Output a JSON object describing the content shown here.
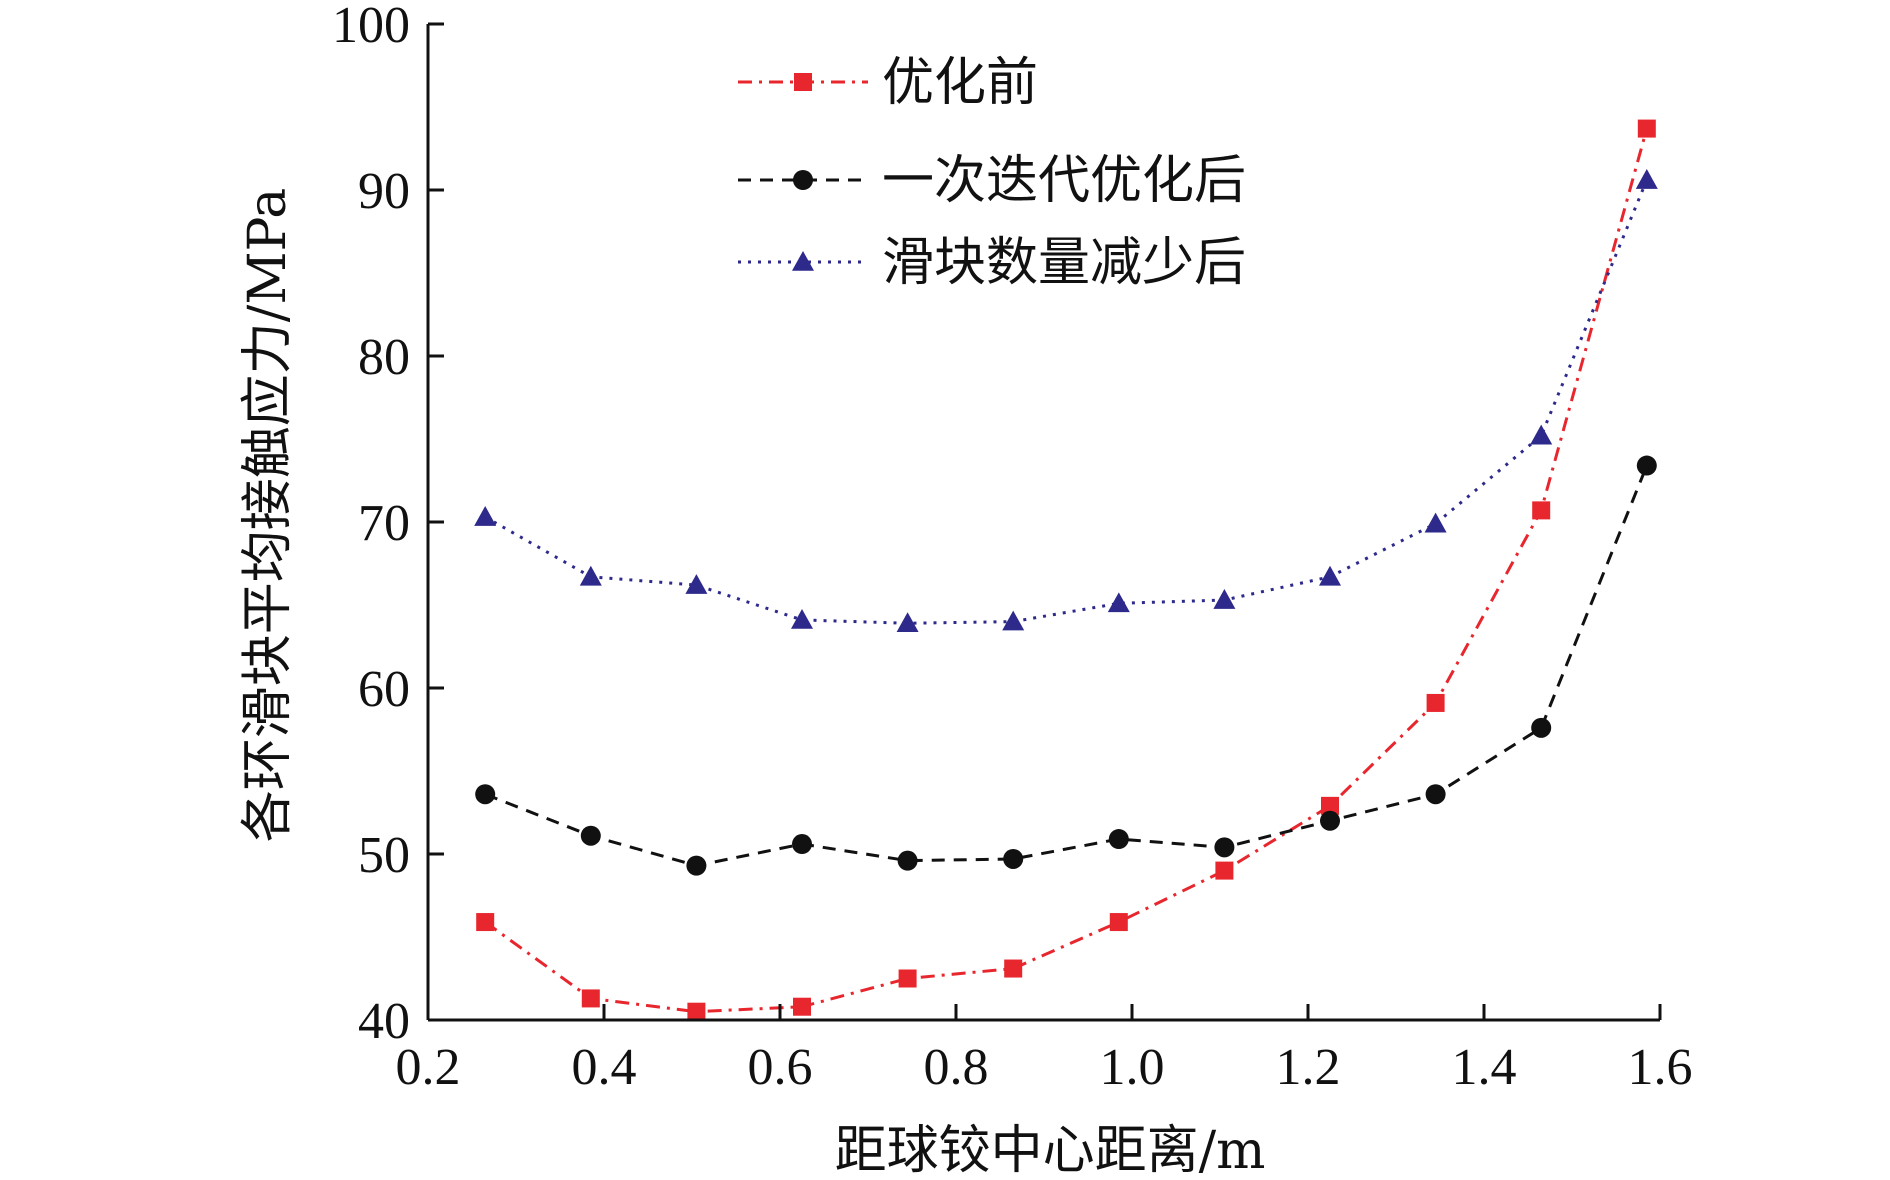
{
  "chart_data": {
    "type": "line",
    "title": "",
    "xlabel": "距球铰中心距离/m",
    "ylabel": "各环滑块平均接触应力/MPa",
    "xlim": [
      0.2,
      1.6
    ],
    "ylim": [
      40,
      100
    ],
    "x_ticks": [
      "0.2",
      "0.4",
      "0.6",
      "0.8",
      "1.0",
      "1.2",
      "1.4",
      "1.6"
    ],
    "y_ticks": [
      "40",
      "50",
      "60",
      "70",
      "80",
      "90",
      "100"
    ],
    "legend_position": "top-center",
    "x": [
      0.265,
      0.385,
      0.505,
      0.625,
      0.745,
      0.865,
      0.985,
      1.105,
      1.225,
      1.345,
      1.465,
      1.585
    ],
    "series": [
      {
        "name": "优化前",
        "color": "#e8262d",
        "marker": "square",
        "line_style": "dashdot",
        "values": [
          45.9,
          41.3,
          40.5,
          40.8,
          42.5,
          43.1,
          45.9,
          49.0,
          52.9,
          59.1,
          70.7,
          93.7
        ]
      },
      {
        "name": "一次迭代优化后",
        "color": "#111111",
        "marker": "circle",
        "line_style": "dash",
        "values": [
          53.6,
          51.1,
          49.3,
          50.6,
          49.6,
          49.7,
          50.9,
          50.4,
          52.0,
          53.6,
          57.6,
          73.4
        ]
      },
      {
        "name": "滑块数量减少后",
        "color": "#2e2a8c",
        "marker": "triangle",
        "line_style": "dot",
        "values": [
          70.3,
          66.7,
          66.2,
          64.1,
          63.9,
          64.0,
          65.1,
          65.3,
          66.7,
          69.9,
          75.2,
          90.6
        ]
      }
    ]
  }
}
